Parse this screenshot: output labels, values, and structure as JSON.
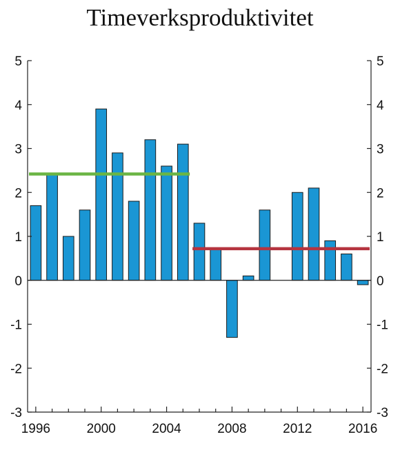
{
  "chart_data": {
    "type": "bar",
    "title": "Timeverksproduktivitet",
    "x": [
      1996,
      1997,
      1998,
      1999,
      2000,
      2001,
      2002,
      2003,
      2004,
      2005,
      2006,
      2007,
      2008,
      2009,
      2010,
      2011,
      2012,
      2013,
      2014,
      2015,
      2016
    ],
    "values": [
      1.7,
      2.4,
      1.0,
      1.6,
      3.9,
      2.9,
      1.8,
      3.2,
      2.6,
      3.1,
      1.3,
      0.7,
      -1.3,
      0.1,
      1.6,
      0.0,
      2.0,
      2.1,
      0.9,
      0.6,
      -0.1
    ],
    "x_tick_labels": [
      "1996",
      "2000",
      "2004",
      "2008",
      "2012",
      "2016"
    ],
    "y_tick_labels": [
      "-3",
      "-2",
      "-1",
      "0",
      "1",
      "2",
      "3",
      "4",
      "5"
    ],
    "ylim": [
      -3,
      5
    ],
    "bar_color": "#1a96d4",
    "averages": [
      {
        "from": 1996,
        "to": 2005,
        "value": 2.42,
        "color": "#6ab544"
      },
      {
        "from": 2006,
        "to": 2016,
        "value": 0.72,
        "color": "#b5343f"
      }
    ],
    "grid": false,
    "xlabel": "",
    "ylabel": ""
  }
}
